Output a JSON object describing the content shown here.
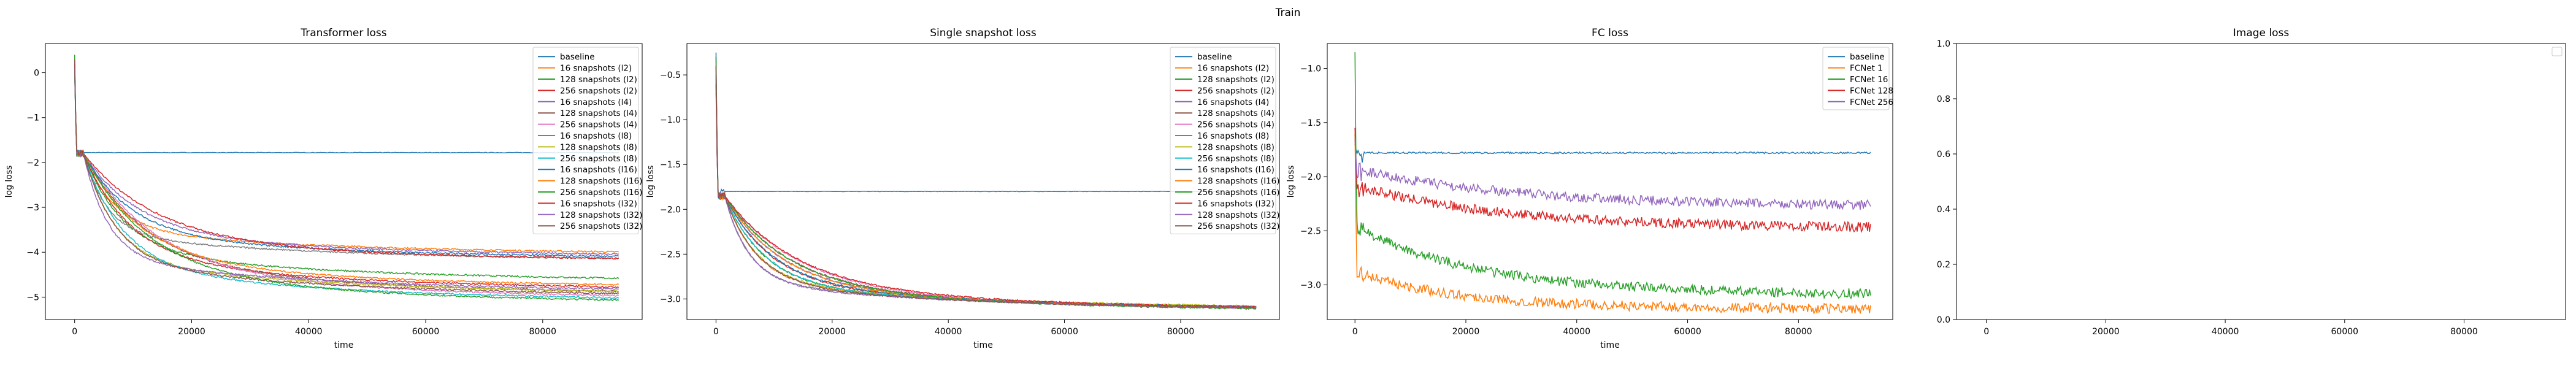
{
  "suptitle": "Train",
  "chart_data": [
    {
      "type": "line",
      "title": "Transformer loss",
      "xlabel": "time",
      "ylabel": "log loss",
      "xlim": [
        -5000,
        97000
      ],
      "ylim": [
        -5.5,
        0.65
      ],
      "xticks": [
        0,
        20000,
        40000,
        60000,
        80000
      ],
      "yticks": [
        -5,
        -4,
        -3,
        -2,
        -1,
        0
      ],
      "xtick_labels": [
        "0",
        "20000",
        "40000",
        "60000",
        "80000"
      ],
      "ytick_labels": [
        "−5",
        "−4",
        "−3",
        "−2",
        "−1",
        "0"
      ],
      "legend_position": "top-right",
      "series": [
        {
          "name": "baseline",
          "color": "#1f77b4",
          "start": 0.2,
          "plateau": -1.78,
          "final": -1.78
        },
        {
          "name": "16 snapshots (l2)",
          "color": "#ff7f0e",
          "start": 0.3,
          "plateau": -1.8,
          "final": -4.05
        },
        {
          "name": "128 snapshots (l2)",
          "color": "#2ca02c",
          "start": 0.4,
          "plateau": -1.8,
          "final": -4.65
        },
        {
          "name": "256 snapshots (l2)",
          "color": "#d62728",
          "start": 0.1,
          "plateau": -1.8,
          "final": -4.85
        },
        {
          "name": "16 snapshots (l4)",
          "color": "#9467bd",
          "start": 0.2,
          "plateau": -1.8,
          "final": -4.1
        },
        {
          "name": "128 snapshots (l4)",
          "color": "#8c564b",
          "start": 0.1,
          "plateau": -1.8,
          "final": -4.95
        },
        {
          "name": "256 snapshots (l4)",
          "color": "#e377c2",
          "start": 0.2,
          "plateau": -1.8,
          "final": -5.05
        },
        {
          "name": "16 snapshots (l8)",
          "color": "#7f7f7f",
          "start": 0.0,
          "plateau": -1.8,
          "final": -4.2
        },
        {
          "name": "128 snapshots (l8)",
          "color": "#bcbd22",
          "start": 0.2,
          "plateau": -1.8,
          "final": -4.95
        },
        {
          "name": "256 snapshots (l8)",
          "color": "#17becf",
          "start": 0.1,
          "plateau": -1.8,
          "final": -5.1
        },
        {
          "name": "16 snapshots (l16)",
          "color": "#1f77b4",
          "start": 0.3,
          "plateau": -1.8,
          "final": -4.15
        },
        {
          "name": "128 snapshots (l16)",
          "color": "#ff7f0e",
          "start": 0.2,
          "plateau": -1.8,
          "final": -4.8
        },
        {
          "name": "256 snapshots (l16)",
          "color": "#2ca02c",
          "start": 0.0,
          "plateau": -1.8,
          "final": -5.15
        },
        {
          "name": "16 snapshots (l32)",
          "color": "#d62728",
          "start": 0.2,
          "plateau": -1.8,
          "final": -4.2
        },
        {
          "name": "128 snapshots (l32)",
          "color": "#9467bd",
          "start": 0.1,
          "plateau": -1.8,
          "final": -4.9
        },
        {
          "name": "256 snapshots (l32)",
          "color": "#8c564b",
          "start": 0.3,
          "plateau": -1.8,
          "final": -5.0
        }
      ]
    },
    {
      "type": "line",
      "title": "Single snapshot loss",
      "xlabel": "time",
      "ylabel": "log loss",
      "xlim": [
        -5000,
        97000
      ],
      "ylim": [
        -3.23,
        -0.15
      ],
      "xticks": [
        0,
        20000,
        40000,
        60000,
        80000
      ],
      "yticks": [
        -3.0,
        -2.5,
        -2.0,
        -1.5,
        -1.0,
        -0.5
      ],
      "xtick_labels": [
        "0",
        "20000",
        "40000",
        "60000",
        "80000"
      ],
      "ytick_labels": [
        "−3.0",
        "−2.5",
        "−2.0",
        "−1.5",
        "−1.0",
        "−0.5"
      ],
      "legend_position": "top-right",
      "series": [
        {
          "name": "baseline",
          "color": "#1f77b4",
          "start": -0.25,
          "plateau": -1.8,
          "final": -1.8
        },
        {
          "name": "16 snapshots (l2)",
          "color": "#ff7f0e",
          "start": -0.4,
          "plateau": -1.85,
          "final": -3.12
        },
        {
          "name": "128 snapshots (l2)",
          "color": "#2ca02c",
          "start": -0.5,
          "plateau": -1.85,
          "final": -3.13
        },
        {
          "name": "256 snapshots (l2)",
          "color": "#d62728",
          "start": -0.6,
          "plateau": -1.85,
          "final": -3.13
        },
        {
          "name": "16 snapshots (l4)",
          "color": "#9467bd",
          "start": -0.3,
          "plateau": -1.85,
          "final": -3.12
        },
        {
          "name": "128 snapshots (l4)",
          "color": "#8c564b",
          "start": -0.5,
          "plateau": -1.85,
          "final": -3.13
        },
        {
          "name": "256 snapshots (l4)",
          "color": "#e377c2",
          "start": -0.4,
          "plateau": -1.85,
          "final": -3.13
        },
        {
          "name": "16 snapshots (l8)",
          "color": "#7f7f7f",
          "start": -0.7,
          "plateau": -1.85,
          "final": -3.12
        },
        {
          "name": "128 snapshots (l8)",
          "color": "#bcbd22",
          "start": -0.5,
          "plateau": -1.85,
          "final": -3.11
        },
        {
          "name": "256 snapshots (l8)",
          "color": "#17becf",
          "start": -0.6,
          "plateau": -1.85,
          "final": -3.13
        },
        {
          "name": "16 snapshots (l16)",
          "color": "#1f77b4",
          "start": -0.4,
          "plateau": -1.85,
          "final": -3.12
        },
        {
          "name": "128 snapshots (l16)",
          "color": "#ff7f0e",
          "start": -0.5,
          "plateau": -1.85,
          "final": -3.13
        },
        {
          "name": "256 snapshots (l16)",
          "color": "#2ca02c",
          "start": -0.3,
          "plateau": -1.85,
          "final": -3.14
        },
        {
          "name": "16 snapshots (l32)",
          "color": "#d62728",
          "start": -0.6,
          "plateau": -1.85,
          "final": -3.12
        },
        {
          "name": "128 snapshots (l32)",
          "color": "#9467bd",
          "start": -0.5,
          "plateau": -1.85,
          "final": -3.13
        },
        {
          "name": "256 snapshots (l32)",
          "color": "#8c564b",
          "start": -0.4,
          "plateau": -1.85,
          "final": -3.13
        }
      ]
    },
    {
      "type": "line",
      "title": "FC loss",
      "xlabel": "time",
      "ylabel": "log loss",
      "xlim": [
        -5000,
        97000
      ],
      "ylim": [
        -3.32,
        -0.77
      ],
      "xticks": [
        0,
        20000,
        40000,
        60000,
        80000
      ],
      "yticks": [
        -3.0,
        -2.5,
        -2.0,
        -1.5,
        -1.0
      ],
      "xtick_labels": [
        "0",
        "20000",
        "40000",
        "60000",
        "80000"
      ],
      "ytick_labels": [
        "−3.0",
        "−2.5",
        "−2.0",
        "−1.5",
        "−1.0"
      ],
      "legend_position": "top-right",
      "series": [
        {
          "name": "baseline",
          "color": "#1f77b4",
          "start": -1.7,
          "plateau": -1.78,
          "final": -1.78
        },
        {
          "name": "FCNet 1",
          "color": "#ff7f0e",
          "start": -1.6,
          "plateau": -2.9,
          "final": -3.23
        },
        {
          "name": "FCNet 16",
          "color": "#2ca02c",
          "start": -0.85,
          "plateau": -2.5,
          "final": -3.1
        },
        {
          "name": "FCNet 128",
          "color": "#d62728",
          "start": -1.55,
          "plateau": -2.1,
          "final": -2.48
        },
        {
          "name": "FCNet 256",
          "color": "#9467bd",
          "start": -1.65,
          "plateau": -1.95,
          "final": -2.28
        }
      ]
    },
    {
      "type": "line",
      "title": "Image loss",
      "xlabel": "",
      "ylabel": "",
      "xlim": [
        -5000,
        97000
      ],
      "ylim": [
        0.0,
        1.0
      ],
      "xticks": [
        0,
        20000,
        40000,
        60000,
        80000
      ],
      "yticks": [
        0.0,
        0.2,
        0.4,
        0.6,
        0.8,
        1.0
      ],
      "xtick_labels": [
        "0",
        "20000",
        "40000",
        "60000",
        "80000"
      ],
      "ytick_labels": [
        "0.0",
        "0.2",
        "0.4",
        "0.6",
        "0.8",
        "1.0"
      ],
      "legend_position": "top-right",
      "series": []
    }
  ]
}
